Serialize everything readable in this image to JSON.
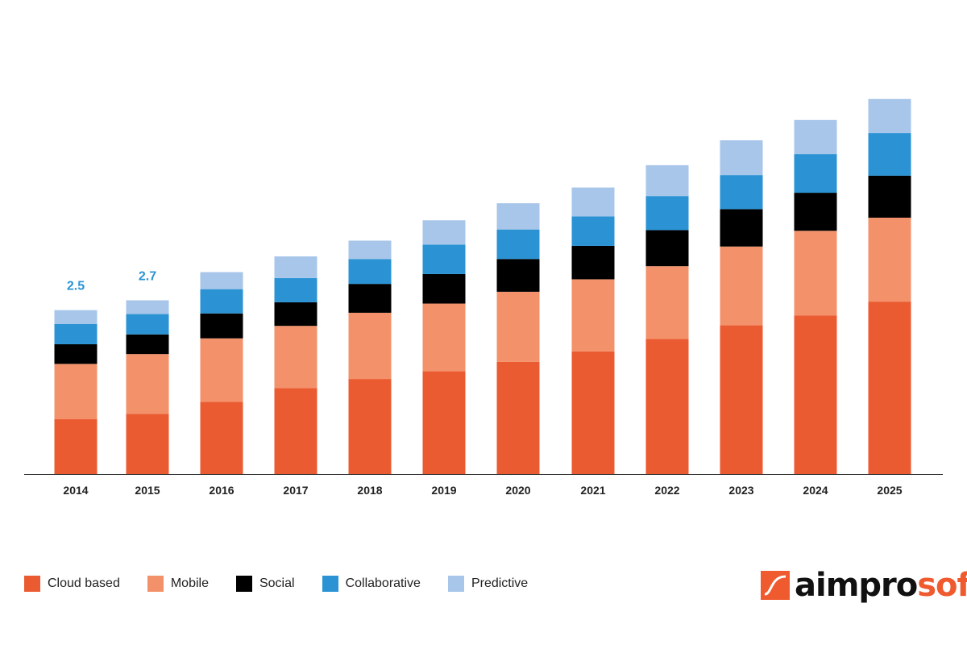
{
  "chart_data": {
    "type": "bar",
    "stacked": true,
    "title": "",
    "xlabel": "",
    "ylabel": "",
    "ylim": [
      0,
      6
    ],
    "grid": false,
    "legend_position": "bottom-left",
    "categories": [
      "2014",
      "2015",
      "2016",
      "2017",
      "2018",
      "2019",
      "2020",
      "2021",
      "2022",
      "2023",
      "2024",
      "2025"
    ],
    "series": [
      {
        "name": "Cloud based",
        "color": "#eb5b31",
        "values": [
          0.84,
          0.92,
          1.1,
          1.31,
          1.45,
          1.57,
          1.71,
          1.87,
          2.06,
          2.27,
          2.42,
          2.63
        ]
      },
      {
        "name": "Mobile",
        "color": "#f3926a",
        "values": [
          0.84,
          0.91,
          0.97,
          0.95,
          1.01,
          1.03,
          1.07,
          1.1,
          1.11,
          1.2,
          1.29,
          1.28
        ]
      },
      {
        "name": "Social",
        "color": "#000000",
        "values": [
          0.3,
          0.3,
          0.38,
          0.36,
          0.44,
          0.45,
          0.5,
          0.51,
          0.55,
          0.57,
          0.58,
          0.64
        ]
      },
      {
        "name": "Collaborative",
        "color": "#2b93d4",
        "values": [
          0.31,
          0.31,
          0.37,
          0.37,
          0.38,
          0.45,
          0.45,
          0.45,
          0.52,
          0.52,
          0.59,
          0.65
        ]
      },
      {
        "name": "Predictive",
        "color": "#a8c6ea",
        "values": [
          0.21,
          0.21,
          0.26,
          0.33,
          0.28,
          0.37,
          0.4,
          0.44,
          0.47,
          0.53,
          0.52,
          0.52
        ]
      }
    ],
    "data_labels": [
      {
        "category": "2014",
        "text": "2.5"
      },
      {
        "category": "2015",
        "text": "2.7"
      }
    ],
    "data_label_color": "#2b93d4"
  },
  "logo": {
    "text_dark": "aimpro",
    "text_accent": "soft",
    "accent_color": "#ef5a2e"
  }
}
